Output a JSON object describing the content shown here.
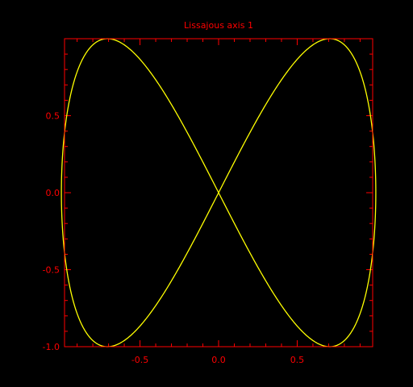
{
  "chart_data": {
    "type": "line",
    "title": "Lissajous axis 1",
    "xlabel": "",
    "ylabel": "",
    "xlim": [
      -0.98,
      0.98
    ],
    "ylim": [
      -1.0,
      1.0
    ],
    "x_ticks": [
      -0.5,
      0.0,
      0.5
    ],
    "x_tick_labels": [
      "-0.5",
      "0.0",
      "0.5"
    ],
    "y_ticks": [
      -1.0,
      -0.5,
      0.0,
      0.5
    ],
    "y_tick_labels": [
      "-1.0",
      "-0.5",
      "0.0",
      "0.5"
    ],
    "grid": false,
    "series": [
      {
        "curve": "lissajous",
        "x_function": "sin(t)",
        "y_function": "sin(2t)",
        "t_range": [
          0,
          6.2832
        ],
        "color": "#ffff00"
      }
    ]
  },
  "colors": {
    "background": "#000000",
    "axes": "#ff0000",
    "text": "#ff0000",
    "curve": "#ffff00"
  }
}
